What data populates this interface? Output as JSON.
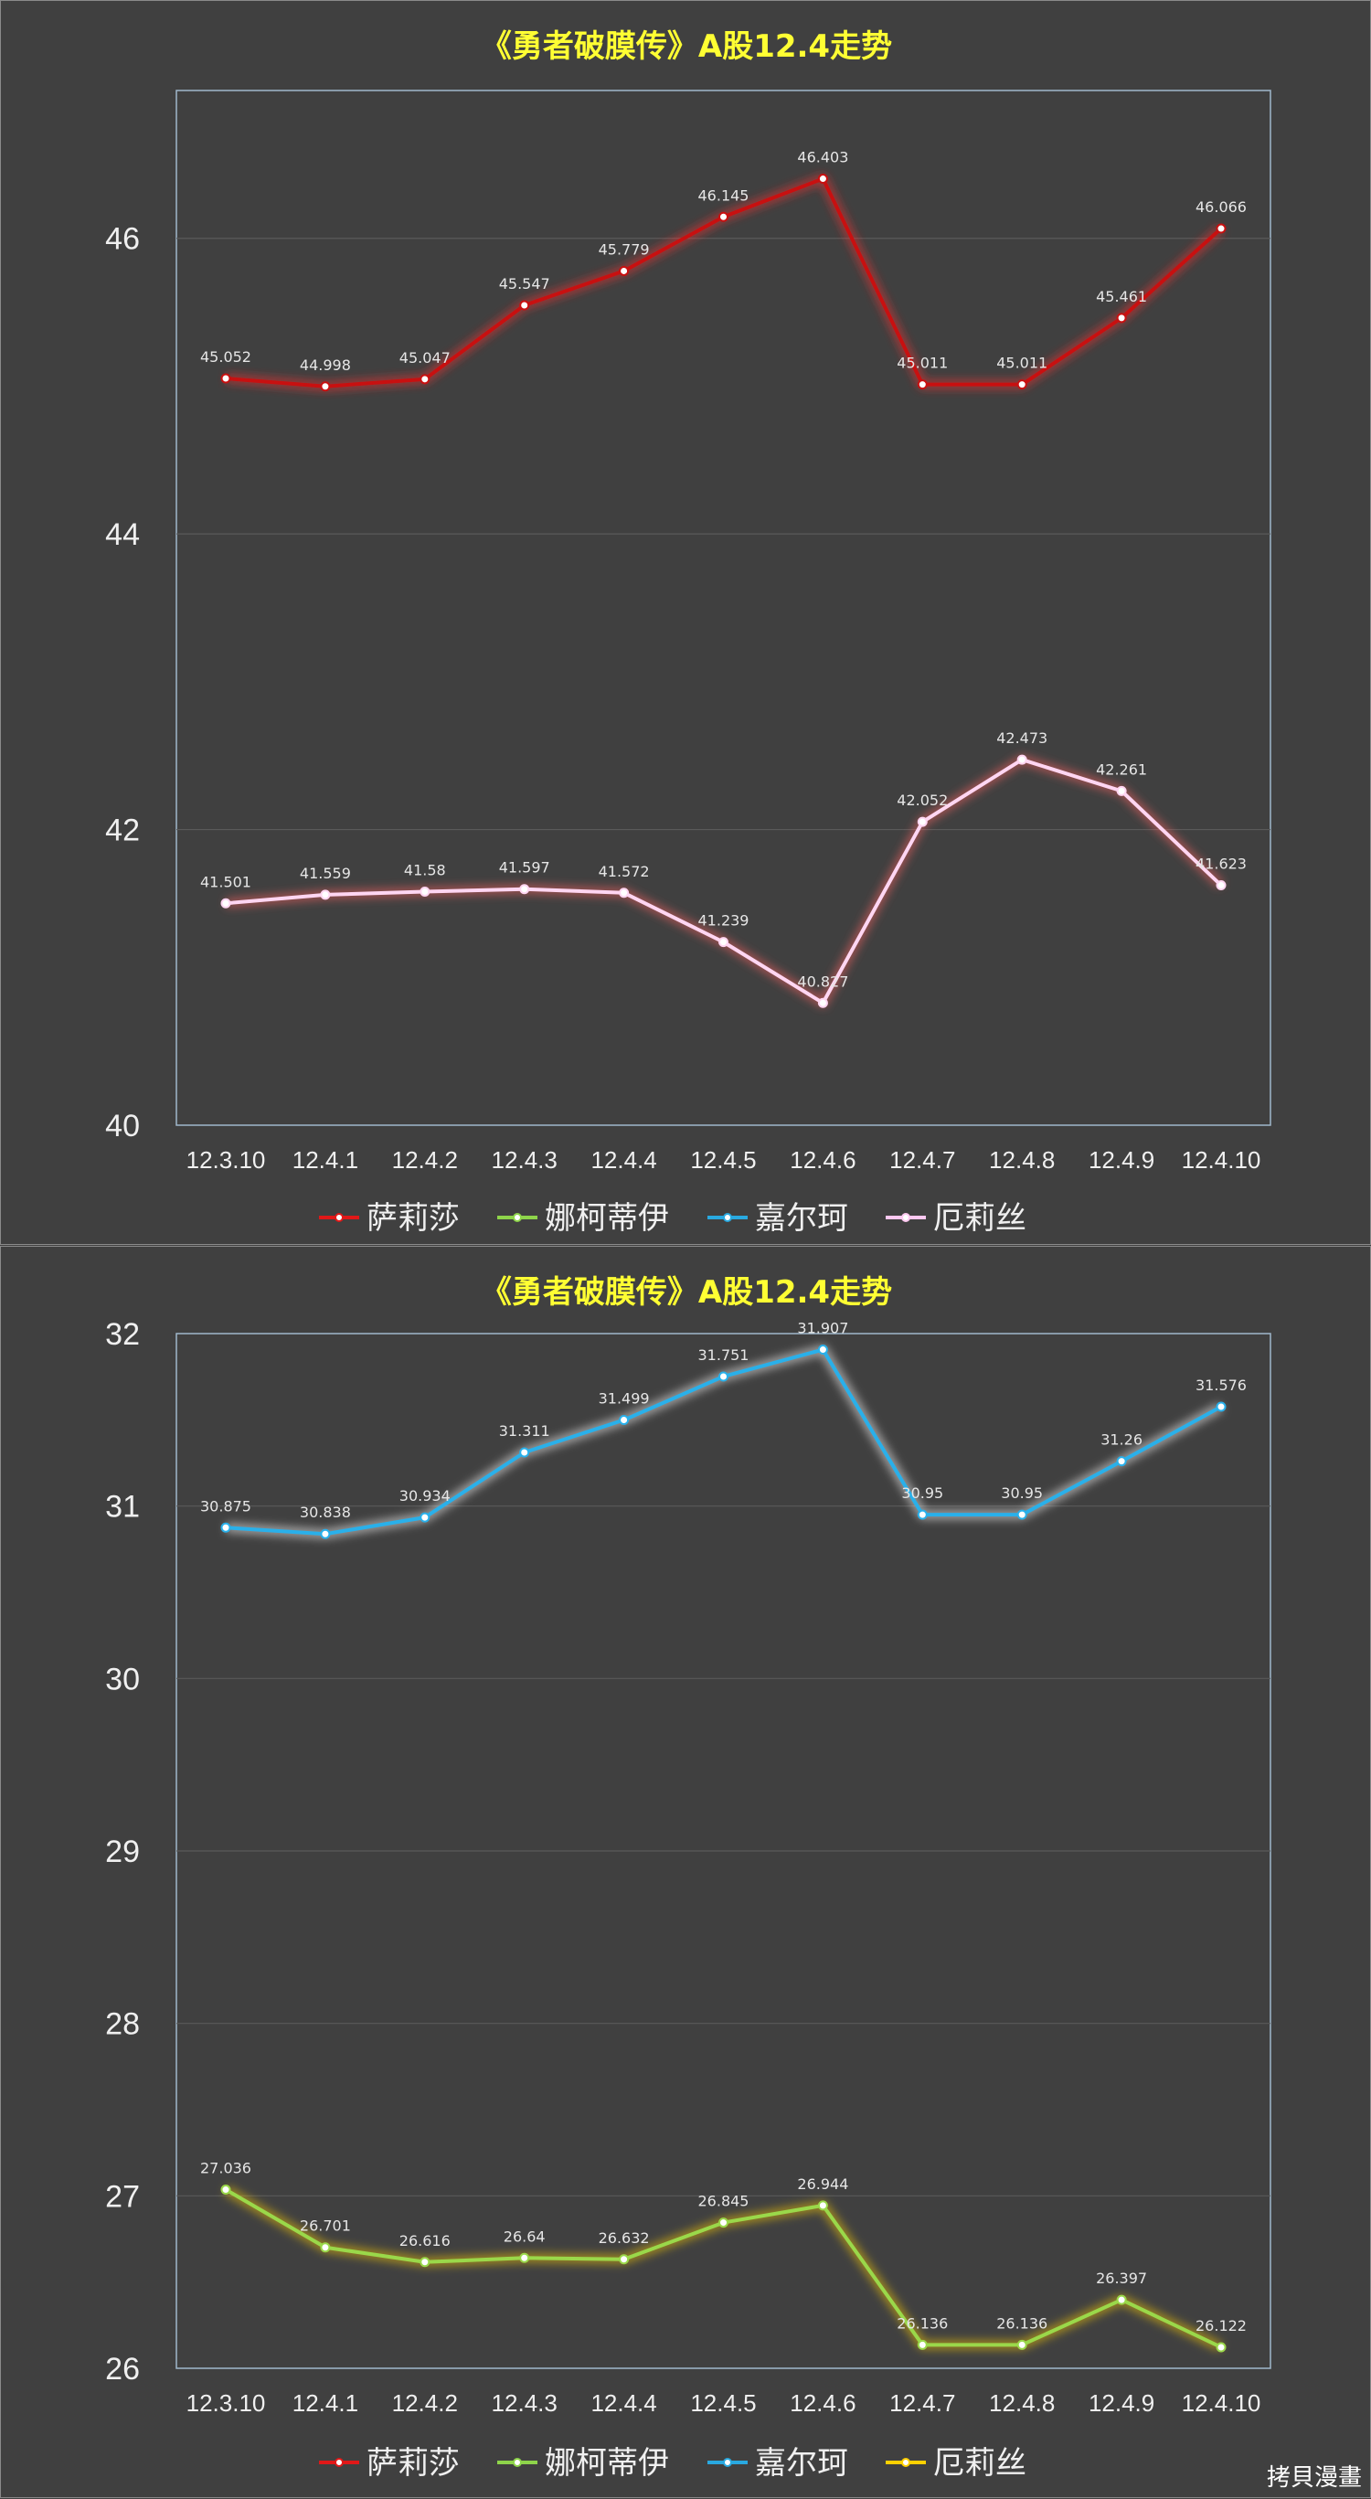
{
  "chart_data": [
    {
      "type": "line",
      "title": "《勇者破膜传》A股12.4走势",
      "categories": [
        "12.3.10",
        "12.4.1",
        "12.4.2",
        "12.4.3",
        "12.4.4",
        "12.4.5",
        "12.4.6",
        "12.4.7",
        "12.4.8",
        "12.4.9",
        "12.4.10"
      ],
      "ylim": [
        40,
        47
      ],
      "yticks": [
        40,
        42,
        44,
        46
      ],
      "grid": true,
      "legend_position": "bottom",
      "legend": [
        {
          "name": "萨莉莎",
          "color": "#e01818"
        },
        {
          "name": "娜柯蒂伊",
          "color": "#8ed44a"
        },
        {
          "name": "嘉尔珂",
          "color": "#29a9e0"
        },
        {
          "name": "厄莉丝",
          "color": "#ffc8f0"
        }
      ],
      "series": [
        {
          "name": "萨莉莎",
          "color": "#c81010",
          "glow": "#ff3030",
          "values": [
            45.052,
            44.998,
            45.047,
            45.547,
            45.779,
            46.145,
            46.403,
            45.011,
            45.011,
            45.461,
            46.066
          ]
        },
        {
          "name": "厄莉丝",
          "color": "#ffd6f2",
          "glow": "#ff6060",
          "values": [
            41.501,
            41.559,
            41.58,
            41.597,
            41.572,
            41.239,
            40.827,
            42.052,
            42.473,
            42.261,
            41.623
          ]
        }
      ]
    },
    {
      "type": "line",
      "title": "《勇者破膜传》A股12.4走势",
      "categories": [
        "12.3.10",
        "12.4.1",
        "12.4.2",
        "12.4.3",
        "12.4.4",
        "12.4.5",
        "12.4.6",
        "12.4.7",
        "12.4.8",
        "12.4.9",
        "12.4.10"
      ],
      "ylim": [
        26,
        32
      ],
      "yticks": [
        26,
        27,
        28,
        29,
        30,
        31,
        32
      ],
      "grid": true,
      "legend_position": "bottom",
      "legend": [
        {
          "name": "萨莉莎",
          "color": "#e01818"
        },
        {
          "name": "娜柯蒂伊",
          "color": "#8ed44a"
        },
        {
          "name": "嘉尔珂",
          "color": "#29a9e0"
        },
        {
          "name": "厄莉丝",
          "color": "#ffd000"
        }
      ],
      "series": [
        {
          "name": "嘉尔珂",
          "color": "#29b0ea",
          "glow": "#ffffff",
          "values": [
            30.875,
            30.838,
            30.934,
            31.311,
            31.499,
            31.751,
            31.907,
            30.95,
            30.95,
            31.26,
            31.576
          ]
        },
        {
          "name": "娜柯蒂伊",
          "color": "#9ad84a",
          "glow": "#ffd000",
          "values": [
            27.036,
            26.701,
            26.616,
            26.64,
            26.632,
            26.845,
            26.944,
            26.136,
            26.136,
            26.397,
            26.122
          ]
        }
      ]
    }
  ],
  "watermark": "拷貝漫畫"
}
